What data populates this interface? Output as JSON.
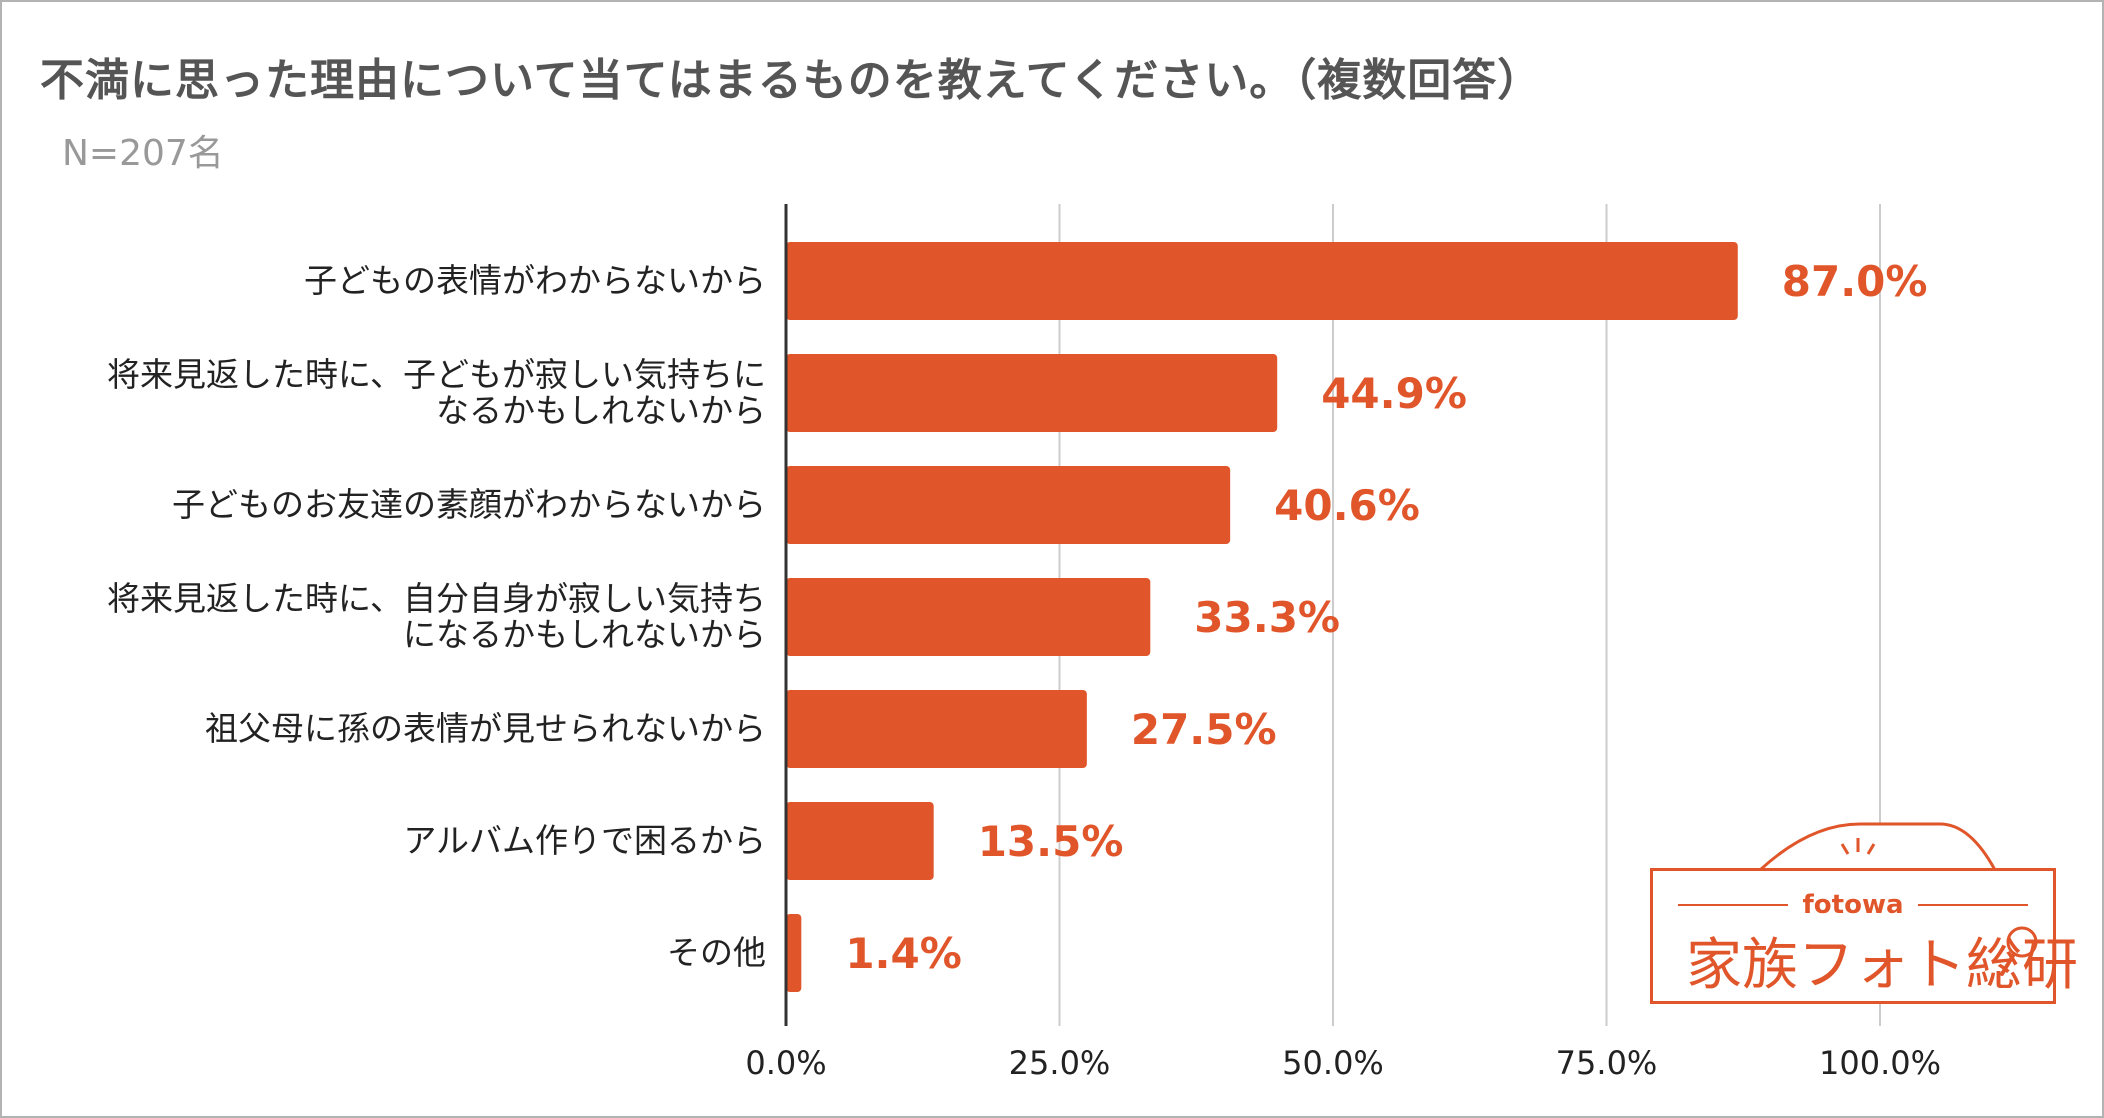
{
  "title": "不満に思った理由について当てはまるものを教えてください。（複数回答）",
  "subtitle": "N=207名",
  "colors": {
    "bar": "#e0562a",
    "grid": "#cccccc",
    "axis": "#333333"
  },
  "chart_data": {
    "type": "bar",
    "orientation": "horizontal",
    "categories": [
      [
        "子どもの表情がわからないから"
      ],
      [
        "将来見返した時に、子どもが寂しい気持ちに",
        "なるかもしれないから"
      ],
      [
        "子どものお友達の素顔がわからないから"
      ],
      [
        "将来見返した時に、自分自身が寂しい気持ち",
        "になるかもしれないから"
      ],
      [
        "祖父母に孫の表情が見せられないから"
      ],
      [
        "アルバム作りで困るから"
      ],
      [
        "その他"
      ]
    ],
    "values": [
      87.0,
      44.9,
      40.6,
      33.3,
      27.5,
      13.5,
      1.4
    ],
    "value_labels": [
      "87.0%",
      "44.9%",
      "40.6%",
      "33.3%",
      "27.5%",
      "13.5%",
      "1.4%"
    ],
    "xlim": [
      0,
      100
    ],
    "x_ticks": [
      0,
      25,
      50,
      75,
      100
    ],
    "x_tick_labels": [
      "0.0%",
      "25.0%",
      "50.0%",
      "75.0%",
      "100.0%"
    ],
    "grid": true
  },
  "logo": {
    "brand": "fotowa",
    "name": "家族フォト総研"
  }
}
